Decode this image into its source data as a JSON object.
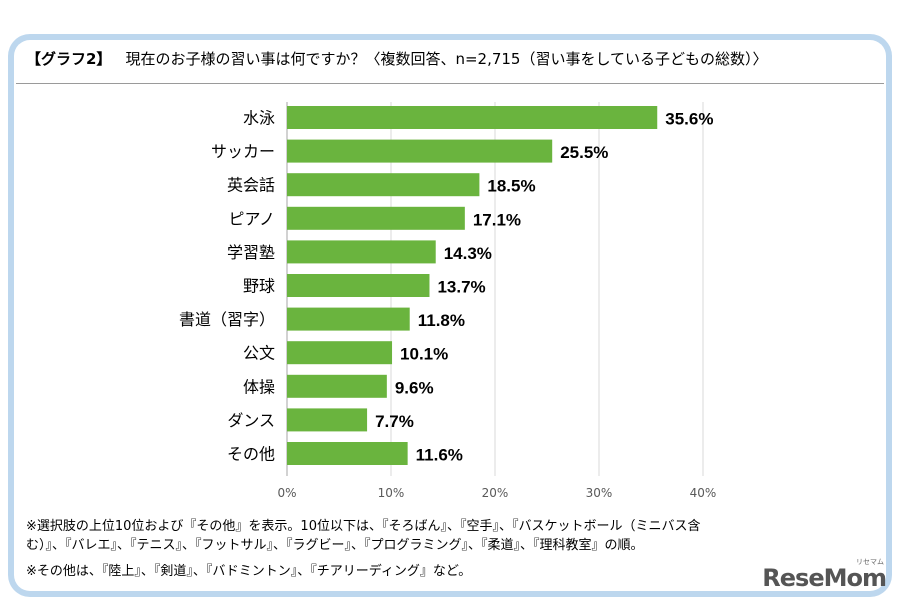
{
  "header": {
    "tag": "【グラフ2】",
    "title": "現在のお子様の習い事は何ですか？〈複数回答、n=2,715（習い事をしている子どもの総数）〉"
  },
  "chart_data": {
    "type": "bar",
    "orientation": "horizontal",
    "categories": [
      "水泳",
      "サッカー",
      "英会話",
      "ピアノ",
      "学習塾",
      "野球",
      "書道（習字）",
      "公文",
      "体操",
      "ダンス",
      "その他"
    ],
    "values": [
      35.6,
      25.5,
      18.5,
      17.1,
      14.3,
      13.7,
      11.8,
      10.1,
      9.6,
      7.7,
      11.6
    ],
    "value_labels": [
      "35.6%",
      "25.5%",
      "18.5%",
      "17.1%",
      "14.3%",
      "13.7%",
      "11.8%",
      "10.1%",
      "9.6%",
      "7.7%",
      "11.6%"
    ],
    "xlim": [
      0,
      40
    ],
    "xticks": [
      "0%",
      "10%",
      "20%",
      "30%",
      "40%"
    ],
    "xtick_values": [
      0,
      10,
      20,
      30,
      40
    ],
    "bar_color": "#6ab43e",
    "grid_color": "#d9d9d9",
    "grid": true
  },
  "notes": [
    "※選択肢の上位10位および『その他』を表示。10位以下は、『そろばん』、『空手』、『バスケットボール（ミニバス含",
    "む）』、『バレエ』、『テニス』、『フットサル』、『ラグビー』、『プログラミング』、『柔道』、『理科教室』の順。",
    "※その他は、『陸上』、『剣道』、『バドミントン』、『チアリーディング』など。"
  ],
  "logo": {
    "text": "ReseMom",
    "sub": "リセマム"
  }
}
